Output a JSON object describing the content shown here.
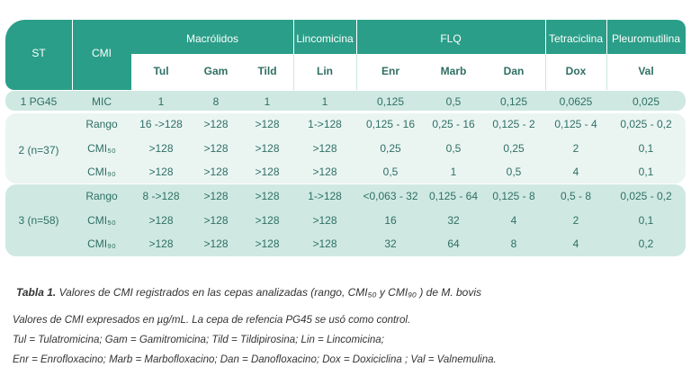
{
  "table": {
    "header": {
      "st": "ST",
      "cmi": "CMI",
      "groups": [
        "Macrólidos",
        "Lincomicina",
        "FLQ",
        "Tetraciclina",
        "Pleuromutilina"
      ],
      "columns": [
        "Tul",
        "Gam",
        "Tild",
        "Lin",
        "Enr",
        "Marb",
        "Dan",
        "Dox",
        "Val"
      ]
    },
    "row1": {
      "st": "1 PG45",
      "label": "MIC",
      "values": [
        "1",
        "8",
        "1",
        "1",
        "0,125",
        "0,5",
        "0,125",
        "0,0625",
        "0,025"
      ]
    },
    "group2": {
      "st": "2 (n=37)",
      "rows": [
        {
          "label": "Rango",
          "values": [
            "16 ->128",
            ">128",
            ">128",
            "1->128",
            "0,125 - 16",
            "0,25 - 16",
            "0,125 - 2",
            "0,125 - 4",
            "0,025 - 0,2"
          ]
        },
        {
          "label": "CMI₅₀",
          "values": [
            ">128",
            ">128",
            ">128",
            ">128",
            "0,25",
            "0,5",
            "0,25",
            "2",
            "0,1"
          ]
        },
        {
          "label": "CMI₉₀",
          "values": [
            ">128",
            ">128",
            ">128",
            ">128",
            "0,5",
            "1",
            "0,5",
            "4",
            "0,1"
          ]
        }
      ]
    },
    "group3": {
      "st": "3 (n=58)",
      "rows": [
        {
          "label": "Rango",
          "values": [
            "8 ->128",
            ">128",
            ">128",
            "1->128",
            "<0,063 - 32",
            "0,125 - 64",
            "0,125 - 8",
            "0,5 - 8",
            "0,025 - 0,2"
          ]
        },
        {
          "label": "CMI₅₀",
          "values": [
            ">128",
            ">128",
            ">128",
            ">128",
            "16",
            "32",
            "4",
            "2",
            "0,1"
          ]
        },
        {
          "label": "CMI₉₀",
          "values": [
            ">128",
            ">128",
            ">128",
            ">128",
            "32",
            "64",
            "8",
            "4",
            "0,2"
          ]
        }
      ]
    }
  },
  "caption": {
    "title_bold": "Tabla 1.",
    "title_rest": " Valores de CMI registrados en las cepas analizadas (rango, CMI₅₀ y CMI₉₀ ) de M. bovis",
    "line1": "Valores de CMI expresados en µg/mL.  La cepa de refencia PG45 se usó como control.",
    "line2": "Tul = Tulatromicina; Gam = Gamitromicina;  Tild  = Tildipirosina; Lin = Lincomicina;",
    "line3": "Enr = Enrofloxacino; Marb = Marbofloxacino; Dan = Danofloxacino; Dox = Doxiciclina ; Val = Valnemulina."
  }
}
